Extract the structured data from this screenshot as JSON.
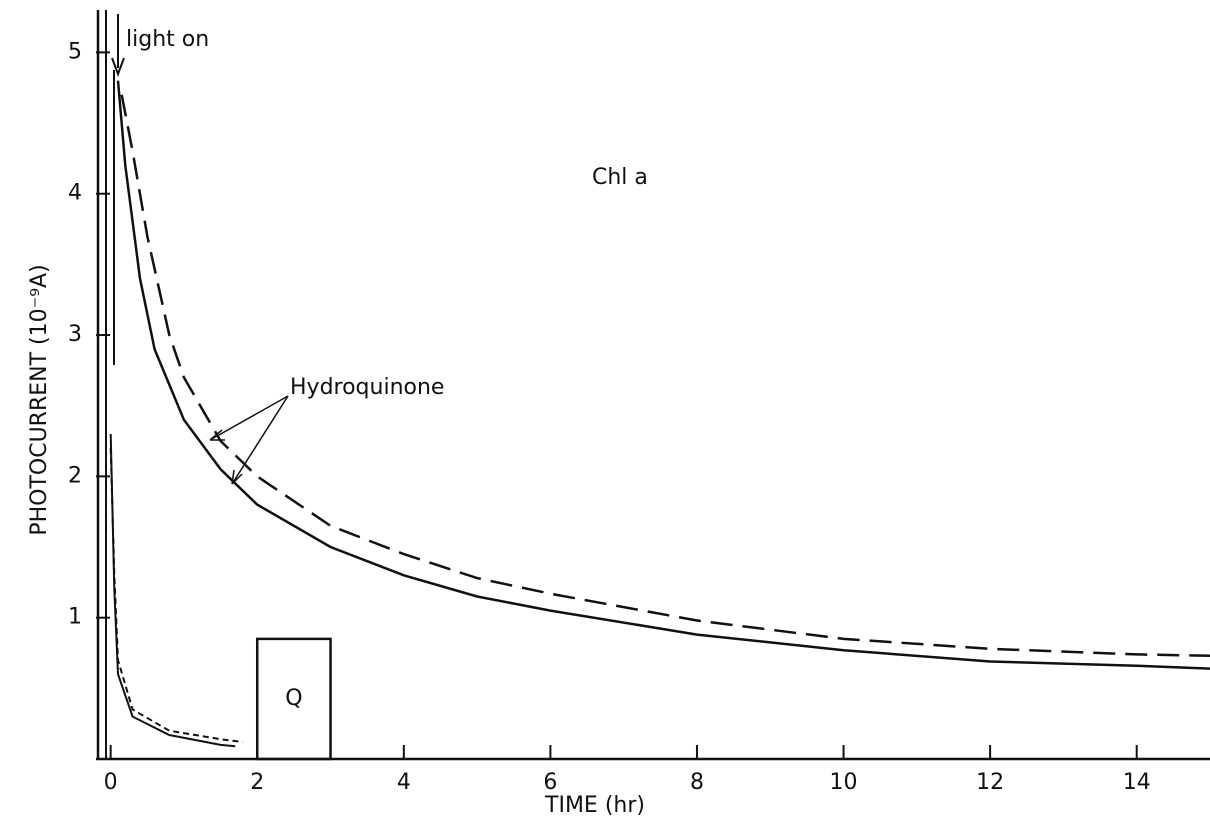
{
  "chart_data": {
    "type": "line",
    "x_label": "TIME (hr)",
    "y_label": "PHOTOCURRENT (10⁻⁹A)",
    "annotations": {
      "light": "light on",
      "sample": "Chl a",
      "hydroquinone": "Hydroquinone"
    },
    "box": {
      "label": "Q",
      "x": [
        2,
        3
      ],
      "height": 0.85
    },
    "xlim": [
      -0.2,
      15
    ],
    "ylim": [
      0,
      5.3
    ],
    "xticks": [
      0,
      2,
      4,
      6,
      8,
      10,
      12,
      14
    ],
    "yticks": [
      1,
      2,
      3,
      4,
      5
    ],
    "series": [
      {
        "color": "#111111",
        "dash": false,
        "x": [
          0.1,
          0.2,
          0.4,
          0.6,
          1,
          1.5,
          2,
          3,
          4,
          5,
          6,
          8,
          10,
          12,
          14,
          15
        ],
        "values": [
          4.8,
          4.2,
          3.4,
          2.9,
          2.4,
          2.05,
          1.8,
          1.5,
          1.3,
          1.15,
          1.05,
          0.88,
          0.77,
          0.69,
          0.66,
          0.64
        ]
      },
      {
        "color": "#111111",
        "dash": true,
        "x": [
          0.15,
          0.3,
          0.5,
          0.8,
          1,
          1.5,
          2,
          3,
          4,
          5,
          6,
          8,
          10,
          12,
          14,
          15
        ],
        "values": [
          4.7,
          4.3,
          3.7,
          3.0,
          2.7,
          2.25,
          2.0,
          1.65,
          1.45,
          1.28,
          1.17,
          0.98,
          0.85,
          0.78,
          0.74,
          0.73
        ]
      },
      {
        "color": "#111111",
        "dash": false,
        "x": [
          0,
          0.05,
          0.1,
          0.3,
          0.8,
          1.5,
          1.7
        ],
        "values": [
          2.3,
          1.2,
          0.6,
          0.3,
          0.17,
          0.1,
          0.09
        ]
      },
      {
        "color": "#111111",
        "dash": true,
        "x": [
          0,
          0.05,
          0.1,
          0.3,
          0.8,
          1.5,
          1.8
        ],
        "values": [
          2.2,
          1.3,
          0.7,
          0.35,
          0.2,
          0.14,
          0.12
        ]
      }
    ]
  }
}
